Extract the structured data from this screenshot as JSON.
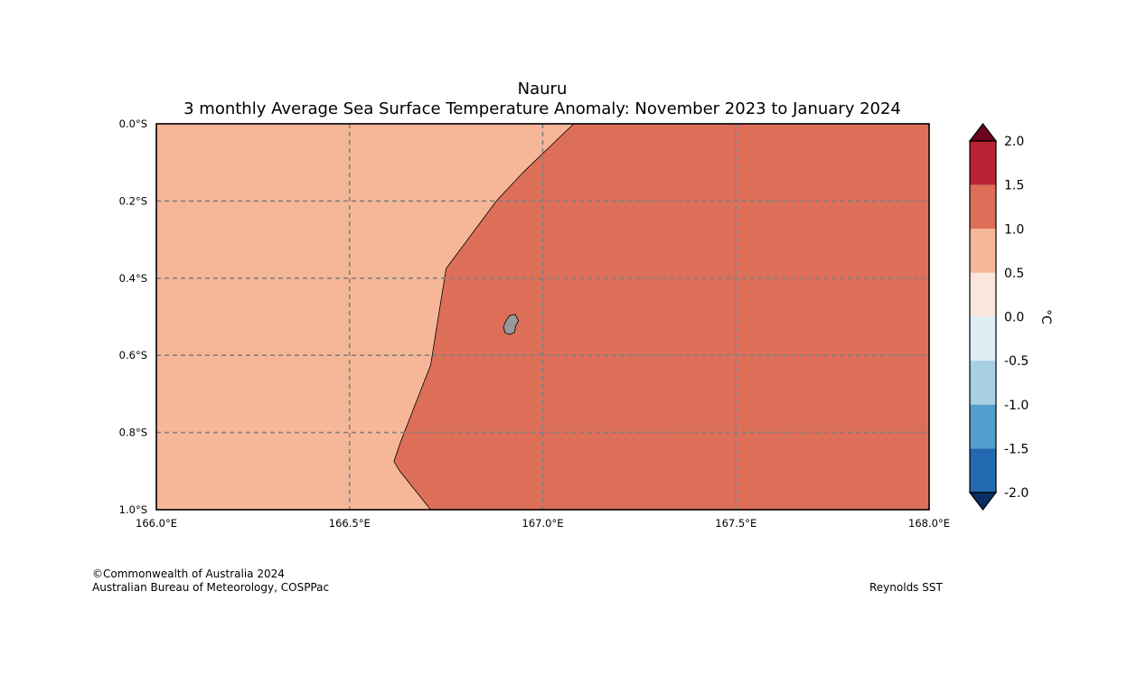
{
  "title": "Nauru",
  "subtitle": "3 monthly Average Sea Surface Temperature Anomaly: November 2023 to January 2024",
  "map": {
    "lon_range": [
      166.0,
      168.0
    ],
    "lat_range": [
      0.0,
      -1.0
    ],
    "lon_ticks": [
      {
        "value": 166.0,
        "label": "166.0°E"
      },
      {
        "value": 166.5,
        "label": "166.5°E"
      },
      {
        "value": 167.0,
        "label": "167.0°E"
      },
      {
        "value": 167.5,
        "label": "167.5°E"
      },
      {
        "value": 168.0,
        "label": "168.0°E"
      }
    ],
    "lat_ticks": [
      {
        "value": 0.0,
        "label": "0.0°S"
      },
      {
        "value": -0.2,
        "label": "0.2°S"
      },
      {
        "value": -0.4,
        "label": "0.4°S"
      },
      {
        "value": -0.6,
        "label": "0.6°S"
      },
      {
        "value": -0.8,
        "label": "0.8°S"
      },
      {
        "value": -1.0,
        "label": "1.0°S"
      }
    ],
    "gridlines": true,
    "region_boundary": [
      [
        167.08,
        0.0
      ],
      [
        166.95,
        -0.125
      ],
      [
        166.88,
        -0.2
      ],
      [
        166.75,
        -0.375
      ],
      [
        166.71,
        -0.625
      ],
      [
        166.63,
        -0.83
      ],
      [
        166.615,
        -0.875
      ],
      [
        166.63,
        -0.9
      ],
      [
        166.71,
        -1.0
      ]
    ],
    "regions": [
      {
        "name": "0.5 to 1.0",
        "color": "#f6b799"
      },
      {
        "name": "1.0 to 1.5",
        "color": "#dd6f59"
      }
    ],
    "island": {
      "name": "Nauru",
      "color": "#999999",
      "outline": [
        [
          166.914,
          -0.497
        ],
        [
          166.929,
          -0.494
        ],
        [
          166.937,
          -0.51
        ],
        [
          166.93,
          -0.524
        ],
        [
          166.927,
          -0.54
        ],
        [
          166.915,
          -0.546
        ],
        [
          166.903,
          -0.542
        ],
        [
          166.898,
          -0.526
        ],
        [
          166.905,
          -0.51
        ]
      ]
    }
  },
  "colorbar": {
    "unit": "°C",
    "bins": [
      {
        "from": 1.5,
        "to": 2.0,
        "color": "#b82232"
      },
      {
        "from": 1.0,
        "to": 1.5,
        "color": "#dd6f59"
      },
      {
        "from": 0.5,
        "to": 1.0,
        "color": "#f6b799"
      },
      {
        "from": 0.0,
        "to": 0.5,
        "color": "#fae6dc"
      },
      {
        "from": -0.5,
        "to": 0.0,
        "color": "#e0ecf3"
      },
      {
        "from": -1.0,
        "to": -0.5,
        "color": "#a7d0e4"
      },
      {
        "from": -1.5,
        "to": -1.0,
        "color": "#549ecd"
      },
      {
        "from": -2.0,
        "to": -1.5,
        "color": "#2369b1"
      }
    ],
    "over_color": "#6d0220",
    "under_color": "#0b2f61",
    "ticks": [
      "2.0",
      "1.5",
      "1.0",
      "0.5",
      "0.0",
      "-0.5",
      "-1.0",
      "-1.5",
      "-2.0"
    ]
  },
  "credits": {
    "copyright": "©Commonwealth of Australia 2024",
    "agency": "Australian Bureau of Meteorology, COSPPac",
    "source": "Reynolds SST"
  }
}
